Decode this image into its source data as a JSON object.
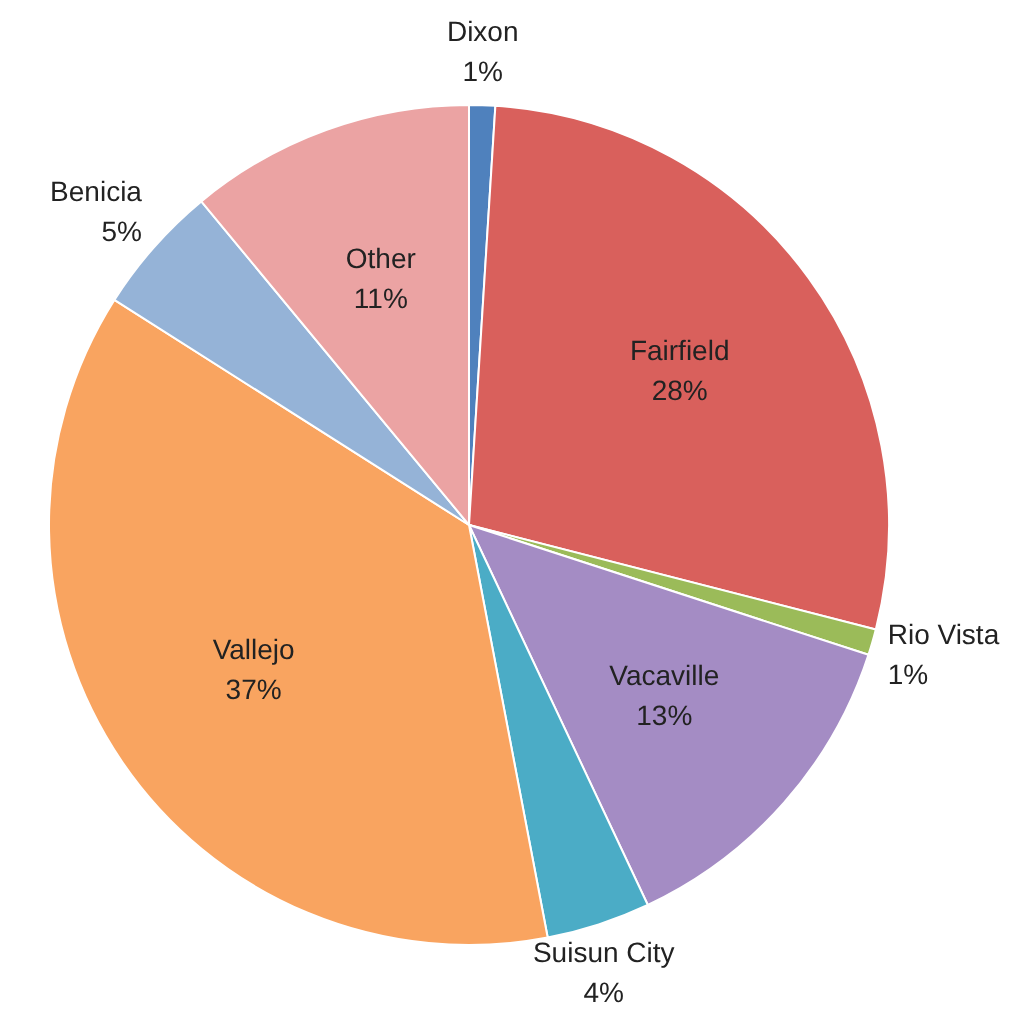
{
  "chart_data": {
    "type": "pie",
    "categories": [
      "Dixon",
      "Fairfield",
      "Rio Vista",
      "Vacaville",
      "Suisun City",
      "Vallejo",
      "Benicia",
      "Other"
    ],
    "values": [
      1,
      28,
      1,
      13,
      4,
      37,
      5,
      11
    ],
    "colors": [
      "#4f81bd",
      "#d9605c",
      "#9bbb59",
      "#a48cc4",
      "#4bacc6",
      "#f9a460",
      "#95b3d7",
      "#eba3a3"
    ],
    "value_labels": [
      "1%",
      "28%",
      "1%",
      "13%",
      "4%",
      "37%",
      "5%",
      "11%"
    ],
    "legend": false
  }
}
